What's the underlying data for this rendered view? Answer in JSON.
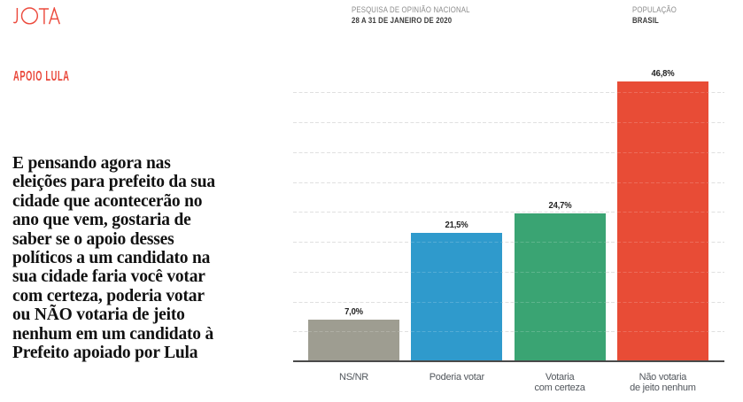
{
  "header": {
    "logo": "JOTA",
    "survey": {
      "label": "PESQUISA DE OPINIÃO NACIONAL",
      "value": "28 A 31 DE JANEIRO DE 2020"
    },
    "population": {
      "label": "POPULAÇÃO",
      "value": "BRASIL"
    }
  },
  "section_title": "APOIO LULA",
  "question_lines": [
    "E pensando agora nas",
    "eleições para prefeito da sua",
    "cidade que acontecerão no",
    "ano que vem, gostaria de",
    "saber se o apoio desses",
    "políticos a um candidato na",
    "sua cidade faria você votar",
    "com certeza, poderia votar",
    "ou NÃO votaria de jeito",
    "nenhum em um candidato à",
    "Prefeito apoiado por Lula"
  ],
  "chart_data": {
    "type": "bar",
    "categories": [
      "NS/NR",
      "Poderia votar",
      "Votaria\ncom certeza",
      "Não votaria\nde jeito nenhum"
    ],
    "values": [
      7.0,
      21.5,
      24.7,
      46.8
    ],
    "value_labels": [
      "7,0%",
      "21,5%",
      "24,7%",
      "46,8%"
    ],
    "bar_colors": [
      "#9e9d91",
      "#2f9acc",
      "#3aa473",
      "#e84c36"
    ],
    "ylim": [
      0,
      50
    ],
    "grid": {
      "step": 5,
      "max": 45,
      "style": "dashed",
      "color": "#e0e0e0"
    },
    "legend": "none"
  },
  "colors": {
    "accent_red": "#e9473a",
    "axis": "#4a4a4a",
    "text_dark": "#262626",
    "text_gray": "#8d8d8d"
  }
}
